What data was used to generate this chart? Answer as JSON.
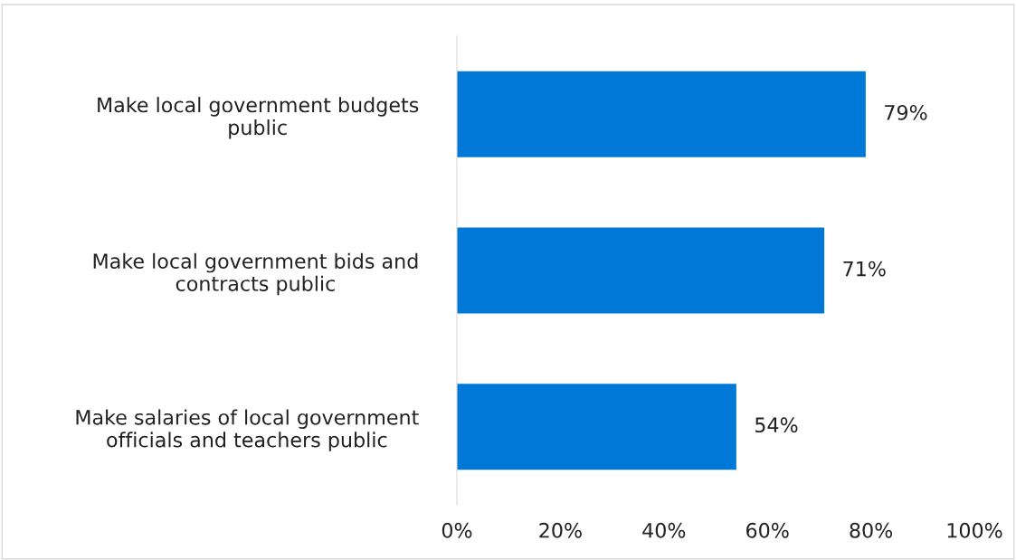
{
  "chart_data": {
    "type": "bar",
    "orientation": "horizontal",
    "categories": [
      "Make local government budgets\npublic",
      "Make local government bids and\ncontracts public",
      "Make salaries of local government\nofficials and teachers public"
    ],
    "values": [
      79,
      71,
      54
    ],
    "value_labels": [
      "79%",
      "71%",
      "54%"
    ],
    "color": "#0078d7",
    "xlim": [
      0,
      100
    ],
    "xticks": [
      {
        "value": 0,
        "label": "0%"
      },
      {
        "value": 20,
        "label": "20%"
      },
      {
        "value": 40,
        "label": "40%"
      },
      {
        "value": 60,
        "label": "60%"
      },
      {
        "value": 80,
        "label": "80%"
      },
      {
        "value": 100,
        "label": "100%"
      }
    ],
    "grid": false,
    "legend": false
  }
}
